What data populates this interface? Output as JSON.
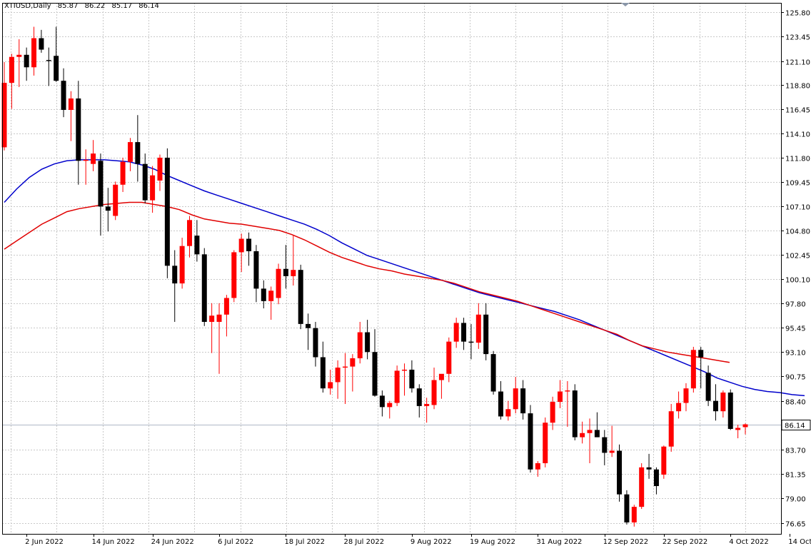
{
  "header": {
    "symbol_timeframe": "XTIUSD,Daily",
    "open": "85.87",
    "high": "86.22",
    "low": "85.17",
    "close": "86.14"
  },
  "colors": {
    "background": "#ffffff",
    "grid": "#c8c8c8",
    "bull_candle": "#ff0000",
    "bear_candle": "#000000",
    "ma_fast": "#0000cc",
    "ma_slow": "#e00000",
    "price_line": "#b0b8c8"
  },
  "chart_data": {
    "type": "candlestick",
    "symbol": "XTIUSD",
    "timeframe": "Daily",
    "y_ticks": [
      "125.80",
      "123.45",
      "121.10",
      "118.80",
      "116.45",
      "114.10",
      "111.80",
      "109.45",
      "107.10",
      "104.80",
      "102.45",
      "100.10",
      "97.80",
      "95.45",
      "93.10",
      "90.75",
      "88.40",
      "86.14",
      "83.70",
      "81.35",
      "79.00",
      "76.65"
    ],
    "ylim": [
      75.6,
      126.7
    ],
    "x_labels": [
      "2 Jun 2022",
      "14 Jun 2022",
      "24 Jun 2022",
      "6 Jul 2022",
      "18 Jul 2022",
      "28 Jul 2022",
      "9 Aug 2022",
      "19 Aug 2022",
      "31 Aug 2022",
      "12 Sep 2022",
      "22 Sep 2022",
      "4 Oct 2022",
      "14 Oct 2022"
    ],
    "x_label_bars": [
      3,
      12,
      20,
      29,
      38,
      46,
      55,
      63,
      72,
      81,
      89,
      98,
      106
    ],
    "current_price": "86.14",
    "grid": true,
    "candles": [
      {
        "o": 112.8,
        "h": 121.0,
        "l": 112.5,
        "c": 119.0
      },
      {
        "o": 119.0,
        "h": 121.8,
        "l": 116.5,
        "c": 121.5
      },
      {
        "o": 121.5,
        "h": 123.2,
        "l": 118.6,
        "c": 121.7
      },
      {
        "o": 121.7,
        "h": 122.4,
        "l": 119.2,
        "c": 120.5
      },
      {
        "o": 120.5,
        "h": 124.4,
        "l": 119.7,
        "c": 123.3
      },
      {
        "o": 123.3,
        "h": 124.1,
        "l": 121.9,
        "c": 122.2
      },
      {
        "o": 121.2,
        "h": 122.4,
        "l": 118.7,
        "c": 121.1
      },
      {
        "o": 121.6,
        "h": 124.4,
        "l": 119.1,
        "c": 119.2
      },
      {
        "o": 119.2,
        "h": 120.4,
        "l": 115.7,
        "c": 116.4
      },
      {
        "o": 116.4,
        "h": 118.2,
        "l": 113.4,
        "c": 117.5
      },
      {
        "o": 117.5,
        "h": 119.2,
        "l": 109.2,
        "c": 111.5
      },
      {
        "o": 111.5,
        "h": 112.6,
        "l": 109.2,
        "c": 111.6
      },
      {
        "o": 111.2,
        "h": 113.5,
        "l": 110.5,
        "c": 112.2
      },
      {
        "o": 111.5,
        "h": 112.2,
        "l": 104.3,
        "c": 107.1
      },
      {
        "o": 107.1,
        "h": 108.9,
        "l": 104.7,
        "c": 106.7
      },
      {
        "o": 106.2,
        "h": 109.5,
        "l": 105.8,
        "c": 109.2
      },
      {
        "o": 109.2,
        "h": 111.8,
        "l": 108.5,
        "c": 111.4
      },
      {
        "o": 111.4,
        "h": 113.7,
        "l": 110.5,
        "c": 113.3
      },
      {
        "o": 113.3,
        "h": 115.9,
        "l": 109.5,
        "c": 111.2
      },
      {
        "o": 111.2,
        "h": 112.2,
        "l": 107.4,
        "c": 107.7
      },
      {
        "o": 107.7,
        "h": 111.0,
        "l": 106.5,
        "c": 110.1
      },
      {
        "o": 109.6,
        "h": 112.1,
        "l": 108.6,
        "c": 111.8
      },
      {
        "o": 111.8,
        "h": 112.7,
        "l": 100.2,
        "c": 101.4
      },
      {
        "o": 101.4,
        "h": 102.9,
        "l": 96.0,
        "c": 99.7
      },
      {
        "o": 99.7,
        "h": 104.1,
        "l": 99.2,
        "c": 103.3
      },
      {
        "o": 103.3,
        "h": 106.2,
        "l": 102.2,
        "c": 105.8
      },
      {
        "o": 104.3,
        "h": 105.8,
        "l": 101.8,
        "c": 102.5
      },
      {
        "o": 102.5,
        "h": 103.1,
        "l": 95.6,
        "c": 96.0
      },
      {
        "o": 96.0,
        "h": 97.8,
        "l": 93.0,
        "c": 96.6
      },
      {
        "o": 96.0,
        "h": 97.8,
        "l": 91.0,
        "c": 96.7
      },
      {
        "o": 96.7,
        "h": 98.6,
        "l": 94.6,
        "c": 98.3
      },
      {
        "o": 98.3,
        "h": 102.9,
        "l": 97.9,
        "c": 102.7
      },
      {
        "o": 102.7,
        "h": 104.5,
        "l": 100.8,
        "c": 104.0
      },
      {
        "o": 104.0,
        "h": 104.6,
        "l": 101.4,
        "c": 102.8
      },
      {
        "o": 102.8,
        "h": 103.4,
        "l": 97.9,
        "c": 99.2
      },
      {
        "o": 99.2,
        "h": 100.0,
        "l": 97.3,
        "c": 98.0
      },
      {
        "o": 98.0,
        "h": 99.4,
        "l": 96.2,
        "c": 99.0
      },
      {
        "o": 98.3,
        "h": 101.6,
        "l": 97.7,
        "c": 101.1
      },
      {
        "o": 101.1,
        "h": 103.4,
        "l": 99.2,
        "c": 100.4
      },
      {
        "o": 100.4,
        "h": 104.3,
        "l": 99.5,
        "c": 101.0
      },
      {
        "o": 101.0,
        "h": 101.5,
        "l": 95.3,
        "c": 95.8
      },
      {
        "o": 95.8,
        "h": 96.8,
        "l": 93.3,
        "c": 95.4
      },
      {
        "o": 95.4,
        "h": 96.0,
        "l": 91.7,
        "c": 92.6
      },
      {
        "o": 92.6,
        "h": 94.1,
        "l": 89.2,
        "c": 89.6
      },
      {
        "o": 89.6,
        "h": 91.4,
        "l": 89.0,
        "c": 90.2
      },
      {
        "o": 90.2,
        "h": 92.3,
        "l": 88.6,
        "c": 91.6
      },
      {
        "o": 91.6,
        "h": 93.0,
        "l": 88.1,
        "c": 91.7
      },
      {
        "o": 91.7,
        "h": 92.9,
        "l": 89.3,
        "c": 92.5
      },
      {
        "o": 92.5,
        "h": 96.0,
        "l": 92.0,
        "c": 95.0
      },
      {
        "o": 95.0,
        "h": 96.2,
        "l": 92.4,
        "c": 93.1
      },
      {
        "o": 93.1,
        "h": 95.3,
        "l": 88.8,
        "c": 88.9
      },
      {
        "o": 88.9,
        "h": 89.4,
        "l": 86.9,
        "c": 87.8
      },
      {
        "o": 87.8,
        "h": 88.4,
        "l": 86.7,
        "c": 88.2
      },
      {
        "o": 88.2,
        "h": 91.8,
        "l": 87.9,
        "c": 91.3
      },
      {
        "o": 91.3,
        "h": 92.0,
        "l": 88.9,
        "c": 91.4
      },
      {
        "o": 91.4,
        "h": 92.3,
        "l": 89.2,
        "c": 89.6
      },
      {
        "o": 89.6,
        "h": 90.0,
        "l": 86.8,
        "c": 87.9
      },
      {
        "o": 87.9,
        "h": 88.7,
        "l": 86.3,
        "c": 88.1
      },
      {
        "o": 88.0,
        "h": 91.6,
        "l": 87.6,
        "c": 90.4
      },
      {
        "o": 90.4,
        "h": 90.9,
        "l": 88.6,
        "c": 91.0
      },
      {
        "o": 91.0,
        "h": 94.5,
        "l": 90.2,
        "c": 94.1
      },
      {
        "o": 94.1,
        "h": 96.4,
        "l": 93.5,
        "c": 95.9
      },
      {
        "o": 95.9,
        "h": 96.4,
        "l": 93.3,
        "c": 94.1
      },
      {
        "o": 94.1,
        "h": 95.8,
        "l": 92.4,
        "c": 94.0
      },
      {
        "o": 94.0,
        "h": 97.8,
        "l": 93.4,
        "c": 96.7
      },
      {
        "o": 96.7,
        "h": 97.8,
        "l": 92.3,
        "c": 92.9
      },
      {
        "o": 92.9,
        "h": 93.2,
        "l": 89.0,
        "c": 89.3
      },
      {
        "o": 89.3,
        "h": 90.3,
        "l": 86.6,
        "c": 86.9
      },
      {
        "o": 86.9,
        "h": 88.4,
        "l": 86.5,
        "c": 87.6
      },
      {
        "o": 87.6,
        "h": 90.7,
        "l": 87.2,
        "c": 89.6
      },
      {
        "o": 89.6,
        "h": 90.4,
        "l": 86.6,
        "c": 87.2
      },
      {
        "o": 87.2,
        "h": 88.0,
        "l": 81.5,
        "c": 81.8
      },
      {
        "o": 81.8,
        "h": 82.6,
        "l": 81.1,
        "c": 82.4
      },
      {
        "o": 82.4,
        "h": 86.8,
        "l": 82.0,
        "c": 86.3
      },
      {
        "o": 86.3,
        "h": 88.8,
        "l": 85.6,
        "c": 88.3
      },
      {
        "o": 88.3,
        "h": 90.4,
        "l": 87.7,
        "c": 89.3
      },
      {
        "o": 89.3,
        "h": 90.3,
        "l": 85.9,
        "c": 89.4
      },
      {
        "o": 89.4,
        "h": 90.0,
        "l": 84.6,
        "c": 84.9
      },
      {
        "o": 84.9,
        "h": 86.4,
        "l": 84.3,
        "c": 85.3
      },
      {
        "o": 85.3,
        "h": 86.7,
        "l": 82.4,
        "c": 85.6
      },
      {
        "o": 85.6,
        "h": 87.3,
        "l": 84.9,
        "c": 84.9
      },
      {
        "o": 84.9,
        "h": 85.6,
        "l": 82.2,
        "c": 83.4
      },
      {
        "o": 83.4,
        "h": 86.0,
        "l": 83.0,
        "c": 83.6
      },
      {
        "o": 83.6,
        "h": 84.2,
        "l": 78.7,
        "c": 79.4
      },
      {
        "o": 79.4,
        "h": 79.8,
        "l": 76.5,
        "c": 76.7
      },
      {
        "o": 76.7,
        "h": 78.4,
        "l": 76.3,
        "c": 78.2
      },
      {
        "o": 78.2,
        "h": 82.4,
        "l": 78.0,
        "c": 82.0
      },
      {
        "o": 82.0,
        "h": 83.3,
        "l": 80.9,
        "c": 81.8
      },
      {
        "o": 81.8,
        "h": 82.0,
        "l": 79.4,
        "c": 80.2
      },
      {
        "o": 81.3,
        "h": 84.1,
        "l": 80.9,
        "c": 84.0
      },
      {
        "o": 84.0,
        "h": 88.1,
        "l": 83.5,
        "c": 87.4
      },
      {
        "o": 87.4,
        "h": 89.3,
        "l": 86.7,
        "c": 88.2
      },
      {
        "o": 88.2,
        "h": 90.1,
        "l": 87.4,
        "c": 89.6
      },
      {
        "o": 89.6,
        "h": 93.6,
        "l": 89.2,
        "c": 93.3
      },
      {
        "o": 93.3,
        "h": 93.6,
        "l": 89.6,
        "c": 92.6
      },
      {
        "o": 91.1,
        "h": 91.8,
        "l": 87.9,
        "c": 88.4
      },
      {
        "o": 88.4,
        "h": 90.0,
        "l": 86.5,
        "c": 87.4
      },
      {
        "o": 87.4,
        "h": 89.4,
        "l": 86.8,
        "c": 89.2
      },
      {
        "o": 89.2,
        "h": 89.5,
        "l": 85.6,
        "c": 85.7
      },
      {
        "o": 85.6,
        "h": 86.1,
        "l": 84.8,
        "c": 85.8
      },
      {
        "o": 85.87,
        "h": 86.22,
        "l": 85.17,
        "c": 86.14
      }
    ],
    "series": [
      {
        "values": [
          107.5,
          108.8,
          109.9,
          110.7,
          111.2,
          111.5,
          111.6,
          111.6,
          111.6,
          111.5,
          111.4,
          111.1,
          110.7,
          110.1,
          109.6,
          109.1,
          108.6,
          108.2,
          107.8,
          107.4,
          107.0,
          106.6,
          106.2,
          105.8,
          105.4,
          104.9,
          104.3,
          103.6,
          103.0,
          102.4,
          102.0,
          101.6,
          101.2,
          100.8,
          100.4,
          100.0,
          99.6,
          99.2,
          98.8,
          98.5,
          98.2,
          97.9,
          97.6,
          97.3,
          97.0,
          96.6,
          96.2,
          95.7,
          95.2,
          94.7,
          94.2,
          93.7,
          93.2,
          92.7,
          92.2,
          91.7,
          91.2,
          90.6,
          90.2,
          89.8,
          89.5,
          89.3,
          89.2,
          89.0,
          88.9
        ]
      },
      {
        "values": [
          103.0,
          103.8,
          104.6,
          105.4,
          106.0,
          106.6,
          106.9,
          107.1,
          107.3,
          107.4,
          107.5,
          107.5,
          107.3,
          107.1,
          106.8,
          106.3,
          105.9,
          105.7,
          105.5,
          105.4,
          105.2,
          105.0,
          104.8,
          104.4,
          103.9,
          103.3,
          102.7,
          102.2,
          101.8,
          101.4,
          101.1,
          100.9,
          100.6,
          100.4,
          100.2,
          100.0,
          99.7,
          99.3,
          98.9,
          98.6,
          98.3,
          98.0,
          97.6,
          97.2,
          96.8,
          96.4,
          96.0,
          95.6,
          95.2,
          94.8,
          94.2,
          93.7,
          93.4,
          93.1,
          92.9,
          92.7,
          92.5,
          92.3,
          92.1
        ]
      }
    ]
  }
}
